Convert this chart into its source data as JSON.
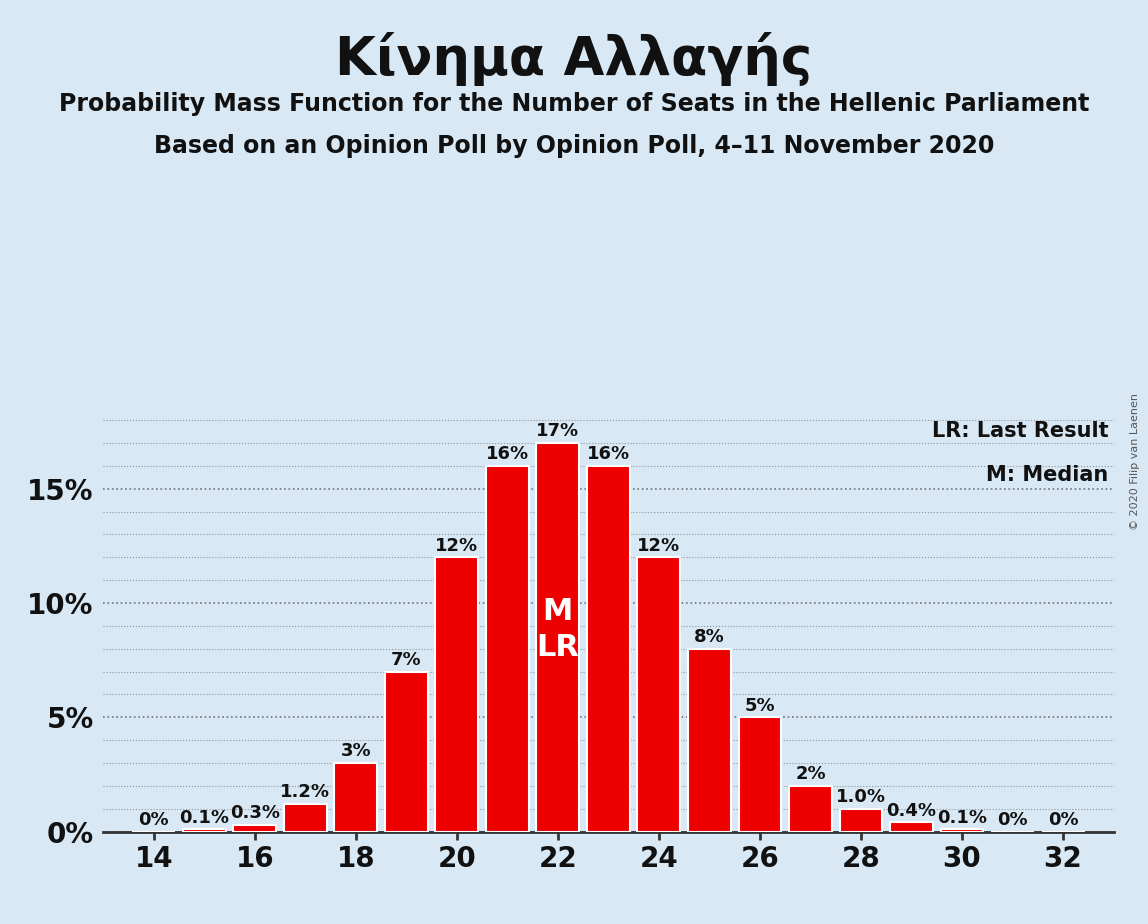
{
  "title": "Κίνημα Αλλαγής",
  "subtitle1": "Probability Mass Function for the Number of Seats in the Hellenic Parliament",
  "subtitle2": "Based on an Opinion Poll by Opinion Poll, 4–11 November 2020",
  "copyright": "© 2020 Filip van Laenen",
  "seats": [
    14,
    15,
    16,
    17,
    18,
    19,
    20,
    21,
    22,
    23,
    24,
    25,
    26,
    27,
    28,
    29,
    30,
    31,
    32
  ],
  "probabilities": [
    0.0,
    0.1,
    0.3,
    1.2,
    3.0,
    7.0,
    12.0,
    16.0,
    17.0,
    16.0,
    12.0,
    8.0,
    5.0,
    2.0,
    1.0,
    0.4,
    0.1,
    0.0,
    0.0
  ],
  "bar_labels": [
    "0%",
    "0.1%",
    "0.3%",
    "1.2%",
    "3%",
    "7%",
    "12%",
    "16%",
    "17%",
    "16%",
    "12%",
    "8%",
    "5%",
    "2%",
    "1.0%",
    "0.4%",
    "0.1%",
    "0%",
    "0%"
  ],
  "bar_color": "#EE0000",
  "background_color": "#d8e8f4",
  "median_seat": 22,
  "last_result_seat": 22,
  "legend_lr": "LR: Last Result",
  "legend_m": "M: Median",
  "xlabel_ticks": [
    14,
    16,
    18,
    20,
    22,
    24,
    26,
    28,
    30,
    32
  ],
  "yticks_major": [
    0,
    5,
    10,
    15
  ],
  "yticks_minor": [
    1,
    2,
    3,
    4,
    6,
    7,
    8,
    9,
    11,
    12,
    13,
    14,
    16,
    17,
    18
  ],
  "ylim": [
    0,
    19
  ],
  "xlim": [
    13.0,
    33.0
  ],
  "grid_color": "#444444",
  "label_color": "#111111",
  "title_fontsize": 38,
  "subtitle_fontsize": 17,
  "tick_fontsize": 20,
  "bar_label_fontsize": 13,
  "legend_fontsize": 15,
  "copyright_fontsize": 8
}
